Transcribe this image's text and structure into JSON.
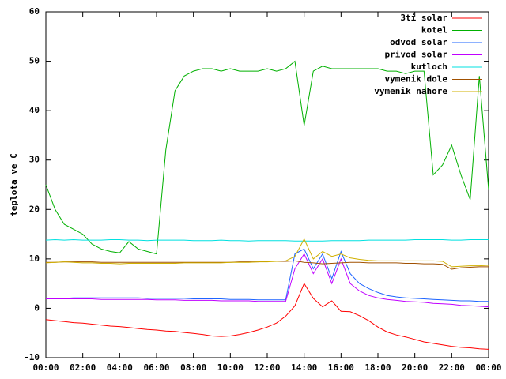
{
  "chart_data": {
    "type": "line",
    "y_label": "teplota ve C",
    "x": [
      0,
      0.5,
      1,
      1.5,
      2,
      2.5,
      3,
      3.5,
      4,
      4.5,
      5,
      5.5,
      6,
      6.5,
      7,
      7.5,
      8,
      8.5,
      9,
      9.5,
      10,
      10.5,
      11,
      11.5,
      12,
      12.5,
      13,
      13.5,
      14,
      14.5,
      15,
      15.5,
      16,
      16.5,
      17,
      17.5,
      18,
      18.5,
      19,
      19.5,
      20,
      20.5,
      21,
      21.5,
      22,
      22.5,
      23,
      23.5,
      24
    ],
    "xlim": [
      0,
      24
    ],
    "xticks": [
      {
        "value": 0,
        "label": "00:00"
      },
      {
        "value": 2,
        "label": "02:00"
      },
      {
        "value": 4,
        "label": "04:00"
      },
      {
        "value": 6,
        "label": "06:00"
      },
      {
        "value": 8,
        "label": "08:00"
      },
      {
        "value": 10,
        "label": "10:00"
      },
      {
        "value": 12,
        "label": "12:00"
      },
      {
        "value": 14,
        "label": "14:00"
      },
      {
        "value": 16,
        "label": "16:00"
      },
      {
        "value": 18,
        "label": "18:00"
      },
      {
        "value": 20,
        "label": "20:00"
      },
      {
        "value": 22,
        "label": "22:00"
      },
      {
        "value": 24,
        "label": "00:00"
      }
    ],
    "ylim": [
      -10,
      60
    ],
    "yticks": [
      -10,
      0,
      10,
      20,
      30,
      40,
      50,
      60
    ],
    "grid": false,
    "legend": "top-right",
    "series": [
      {
        "name": "3ti solar",
        "color": "#ff0000",
        "values": [
          -2.3,
          -2.5,
          -2.7,
          -2.9,
          -3.0,
          -3.2,
          -3.4,
          -3.6,
          -3.7,
          -3.9,
          -4.1,
          -4.3,
          -4.4,
          -4.6,
          -4.7,
          -4.9,
          -5.1,
          -5.3,
          -5.6,
          -5.7,
          -5.6,
          -5.3,
          -4.9,
          -4.4,
          -3.8,
          -3.0,
          -1.6,
          0.5,
          5,
          2,
          0.3,
          1.5,
          -0.6,
          -0.7,
          -1.5,
          -2.5,
          -3.8,
          -4.8,
          -5.4,
          -5.8,
          -6.3,
          -6.8,
          -7.1,
          -7.4,
          -7.7,
          -7.9,
          -8.0,
          -8.2,
          -8.3
        ]
      },
      {
        "name": "kotel",
        "color": "#00b000",
        "values": [
          25,
          20,
          17,
          16,
          15,
          13,
          12,
          11.5,
          11.2,
          13.5,
          12,
          11.5,
          11,
          32,
          44,
          47,
          48,
          48.5,
          48.5,
          48,
          48.5,
          48,
          48,
          48,
          48.5,
          48,
          48.5,
          50,
          37,
          48,
          49,
          48.5,
          48.5,
          48.5,
          48.5,
          48.5,
          48.5,
          48,
          48,
          47.5,
          48,
          48,
          27,
          29,
          33,
          27,
          22,
          47,
          24
        ]
      },
      {
        "name": "odvod solar",
        "color": "#1e64ff",
        "values": [
          2.0,
          2.0,
          2.0,
          2.1,
          2.1,
          2.1,
          2.1,
          2.1,
          2.1,
          2.1,
          2.1,
          2.0,
          2.0,
          2.0,
          2.0,
          2.0,
          1.9,
          1.9,
          1.9,
          1.9,
          1.8,
          1.8,
          1.8,
          1.7,
          1.7,
          1.7,
          1.7,
          11,
          12,
          8,
          11,
          6,
          11.5,
          7,
          5,
          4,
          3.2,
          2.6,
          2.3,
          2.1,
          2.0,
          1.9,
          1.8,
          1.7,
          1.6,
          1.5,
          1.5,
          1.4,
          1.4
        ]
      },
      {
        "name": "privod solar",
        "color": "#c000ff",
        "values": [
          1.9,
          1.9,
          1.9,
          1.9,
          1.9,
          1.9,
          1.8,
          1.8,
          1.8,
          1.8,
          1.8,
          1.8,
          1.7,
          1.7,
          1.7,
          1.6,
          1.6,
          1.6,
          1.6,
          1.5,
          1.5,
          1.5,
          1.5,
          1.4,
          1.4,
          1.4,
          1.4,
          8,
          11,
          7,
          10,
          5,
          10,
          5,
          3.5,
          2.6,
          2.1,
          1.8,
          1.6,
          1.4,
          1.3,
          1.2,
          1.0,
          0.9,
          0.8,
          0.6,
          0.5,
          0.4,
          0.3
        ]
      },
      {
        "name": "kutloch",
        "color": "#00e0e0",
        "values": [
          13.8,
          13.9,
          13.8,
          13.9,
          13.8,
          13.8,
          13.8,
          13.9,
          13.9,
          13.8,
          13.8,
          13.7,
          13.8,
          13.8,
          13.8,
          13.8,
          13.7,
          13.7,
          13.7,
          13.8,
          13.7,
          13.7,
          13.6,
          13.7,
          13.7,
          13.7,
          13.7,
          13.6,
          13.6,
          13.6,
          13.6,
          13.7,
          13.7,
          13.7,
          13.7,
          13.8,
          13.8,
          13.8,
          13.8,
          13.8,
          13.9,
          13.9,
          13.9,
          13.9,
          13.8,
          13.8,
          13.9,
          13.9,
          13.9
        ]
      },
      {
        "name": "vymenik dole",
        "color": "#a05000",
        "values": [
          9.3,
          9.3,
          9.4,
          9.4,
          9.4,
          9.4,
          9.3,
          9.3,
          9.3,
          9.3,
          9.3,
          9.3,
          9.3,
          9.3,
          9.3,
          9.3,
          9.3,
          9.3,
          9.3,
          9.3,
          9.3,
          9.4,
          9.4,
          9.4,
          9.5,
          9.5,
          9.5,
          9.6,
          9.3,
          9.2,
          9.0,
          9.1,
          9.2,
          9.3,
          9.3,
          9.2,
          9.2,
          9.2,
          9.2,
          9.1,
          9.1,
          9.0,
          9.0,
          8.9,
          7.9,
          8.2,
          8.3,
          8.4,
          8.4
        ]
      },
      {
        "name": "vymenik nahore",
        "color": "#d0b000",
        "values": [
          9.2,
          9.3,
          9.4,
          9.3,
          9.2,
          9.2,
          9.1,
          9.1,
          9.0,
          9.1,
          9.1,
          9.1,
          9.1,
          9.1,
          9.1,
          9.2,
          9.2,
          9.2,
          9.2,
          9.2,
          9.3,
          9.3,
          9.3,
          9.4,
          9.4,
          9.5,
          9.6,
          10.5,
          14,
          10,
          11.5,
          10.5,
          11,
          10.2,
          9.9,
          9.7,
          9.6,
          9.6,
          9.6,
          9.6,
          9.6,
          9.6,
          9.6,
          9.5,
          8.4,
          8.5,
          8.6,
          8.6,
          8.7
        ]
      }
    ]
  }
}
